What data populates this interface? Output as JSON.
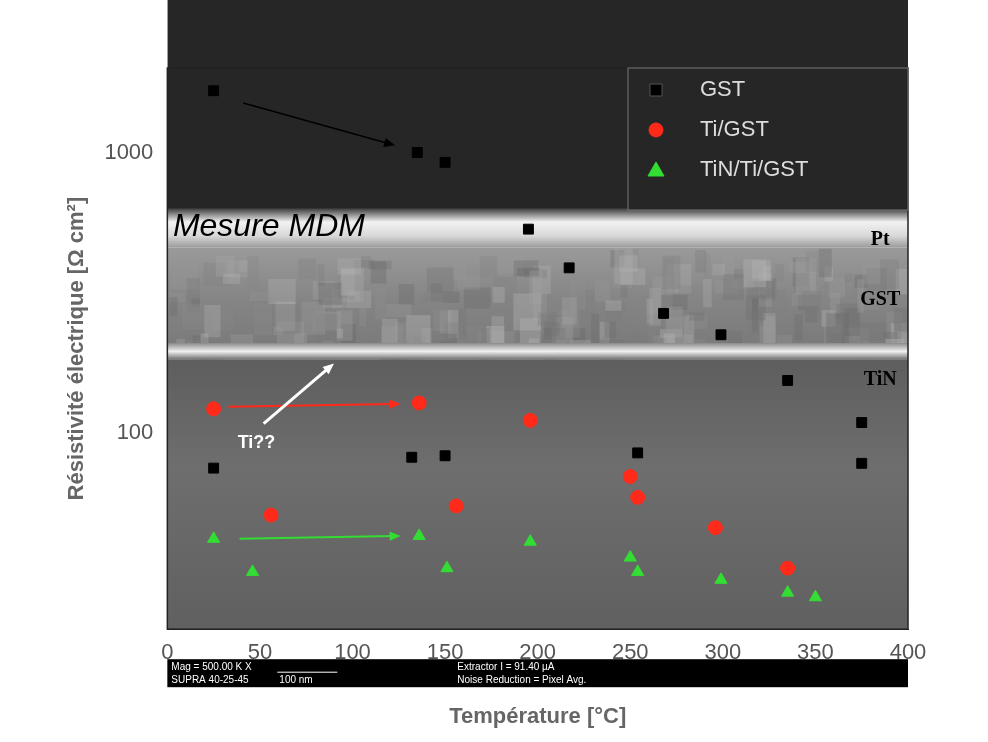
{
  "chart_data": {
    "type": "scatter",
    "x_label": "Température [°C]",
    "y_label": "Résistivité électrique [Ω cm²]",
    "xlim": [
      0,
      400
    ],
    "xticks": [
      0,
      50,
      100,
      150,
      200,
      250,
      300,
      350,
      400
    ],
    "ylim": [
      20,
      2000
    ],
    "yticks": [
      100,
      1000
    ],
    "log": "y",
    "grid": false,
    "legend": "top right",
    "series": [
      {
        "name": "GST",
        "color": "#000000",
        "marker": "square",
        "x": [
          25,
          135,
          150,
          195,
          217,
          268,
          299,
          335,
          375,
          375,
          25,
          132,
          150,
          254
        ],
        "values": [
          1660,
          1000,
          922,
          533,
          388,
          267,
          224,
          154,
          109,
          78,
          75,
          82,
          83,
          85
        ]
      },
      {
        "name": "Ti/GST",
        "color": "#ff2a1a",
        "marker": "circle",
        "x": [
          25,
          136,
          56,
          156,
          196,
          250,
          254,
          296,
          335
        ],
        "values": [
          122,
          128,
          51,
          55,
          111,
          70,
          59,
          46,
          33
        ]
      },
      {
        "name": "TiN/Ti/GST",
        "color": "#33dd33",
        "marker": "triangle",
        "x": [
          25,
          46,
          136,
          151,
          196,
          250,
          254,
          299,
          335,
          350
        ],
        "values": [
          42,
          32,
          43,
          33,
          41,
          36,
          32,
          30,
          27,
          26
        ]
      }
    ],
    "annotations": [
      "Mesure MDM",
      "Ti??",
      "Pt",
      "GST",
      "TiN"
    ],
    "footer": [
      "Mag = 500.00 K X",
      "SUPRA 40-25-45",
      "100 nm",
      "Noise Reduction = Pixel Avg.",
      "Extractor I = 91.40 µA"
    ]
  }
}
